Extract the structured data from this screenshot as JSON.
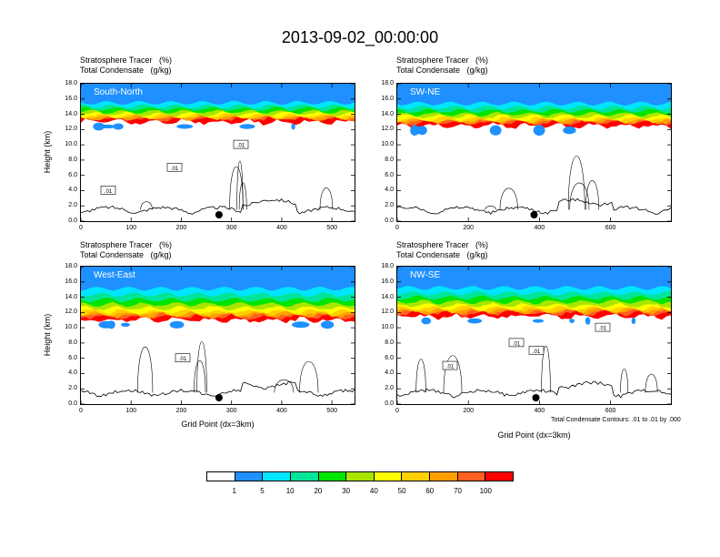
{
  "title": "2013-09-02_00:00:00",
  "panel_title_line1": "Stratosphere Tracer   (%)",
  "panel_title_line2": "Total Condensate   (g/kg)",
  "colorbar": {
    "colors": [
      "#ffffff",
      "#1e90ff",
      "#00e5ff",
      "#00e59a",
      "#00e500",
      "#a8e500",
      "#ffff00",
      "#ffd000",
      "#ffa000",
      "#ff6020",
      "#ff0000"
    ],
    "labels": [
      "1",
      "5",
      "10",
      "20",
      "30",
      "40",
      "50",
      "60",
      "70",
      "100"
    ]
  },
  "chart_data": [
    {
      "type": "heatmap",
      "name": "South-North",
      "title": "Stratosphere Tracer (%) / Total Condensate (g/kg)",
      "ylabel": "Height (km)",
      "xlabel": "",
      "xlim": [
        0,
        545
      ],
      "ylim": [
        0,
        18
      ],
      "yticks": [
        "0.0",
        "2.0",
        "4.0",
        "6.0",
        "8.0",
        "10.0",
        "12.0",
        "14.0",
        "16.0",
        "18.0"
      ],
      "xticks": [
        "0",
        "100",
        "200",
        "300",
        "400",
        "500"
      ],
      "xtick_values": [
        0,
        100,
        200,
        300,
        400,
        500
      ],
      "contour_labels": [
        ".01",
        ".01",
        ".01"
      ],
      "tracer_base_km": 13.0,
      "point_x": 275
    },
    {
      "type": "heatmap",
      "name": "SW-NE",
      "title": "Stratosphere Tracer (%) / Total Condensate (g/kg)",
      "ylabel": "",
      "xlabel": "",
      "xlim": [
        0,
        770
      ],
      "ylim": [
        0,
        18
      ],
      "yticks": [
        "0.0",
        "2.0",
        "4.0",
        "6.0",
        "8.0",
        "10.0",
        "12.0",
        "14.0",
        "16.0",
        "18.0"
      ],
      "xticks": [
        "0",
        "200",
        "400",
        "600"
      ],
      "xtick_values": [
        0,
        200,
        400,
        600
      ],
      "contour_labels": [],
      "tracer_base_km": 12.5,
      "point_x": 385
    },
    {
      "type": "heatmap",
      "name": "West-East",
      "title": "Stratosphere Tracer (%) / Total Condensate (g/kg)",
      "ylabel": "Height (km)",
      "xlabel": "Grid Point (dx=3km)",
      "xlim": [
        0,
        545
      ],
      "ylim": [
        0,
        18
      ],
      "yticks": [
        "0.0",
        "2.0",
        "4.0",
        "6.0",
        "8.0",
        "10.0",
        "12.0",
        "14.0",
        "16.0",
        "18.0"
      ],
      "xticks": [
        "0",
        "100",
        "200",
        "300",
        "400",
        "500"
      ],
      "xtick_values": [
        0,
        100,
        200,
        300,
        400,
        500
      ],
      "contour_labels": [
        ".01"
      ],
      "tracer_base_km": 11.0,
      "point_x": 275
    },
    {
      "type": "heatmap",
      "name": "NW-SE",
      "title": "Stratosphere Tracer (%) / Total Condensate (g/kg)",
      "ylabel": "",
      "xlabel": "Grid Point (dx=3km)",
      "xlim": [
        0,
        770
      ],
      "ylim": [
        0,
        18
      ],
      "yticks": [
        "0.0",
        "2.0",
        "4.0",
        "6.0",
        "8.0",
        "10.0",
        "12.0",
        "14.0",
        "16.0",
        "18.0"
      ],
      "xticks": [
        "0",
        "200",
        "400",
        "600"
      ],
      "xtick_values": [
        0,
        200,
        400,
        600
      ],
      "contour_labels": [
        ".01",
        ".01",
        ".01",
        ".01"
      ],
      "tracer_base_km": 11.5,
      "point_x": 390
    }
  ],
  "contour_note": "Total Condensate Contours: .01 to .01 by .000"
}
